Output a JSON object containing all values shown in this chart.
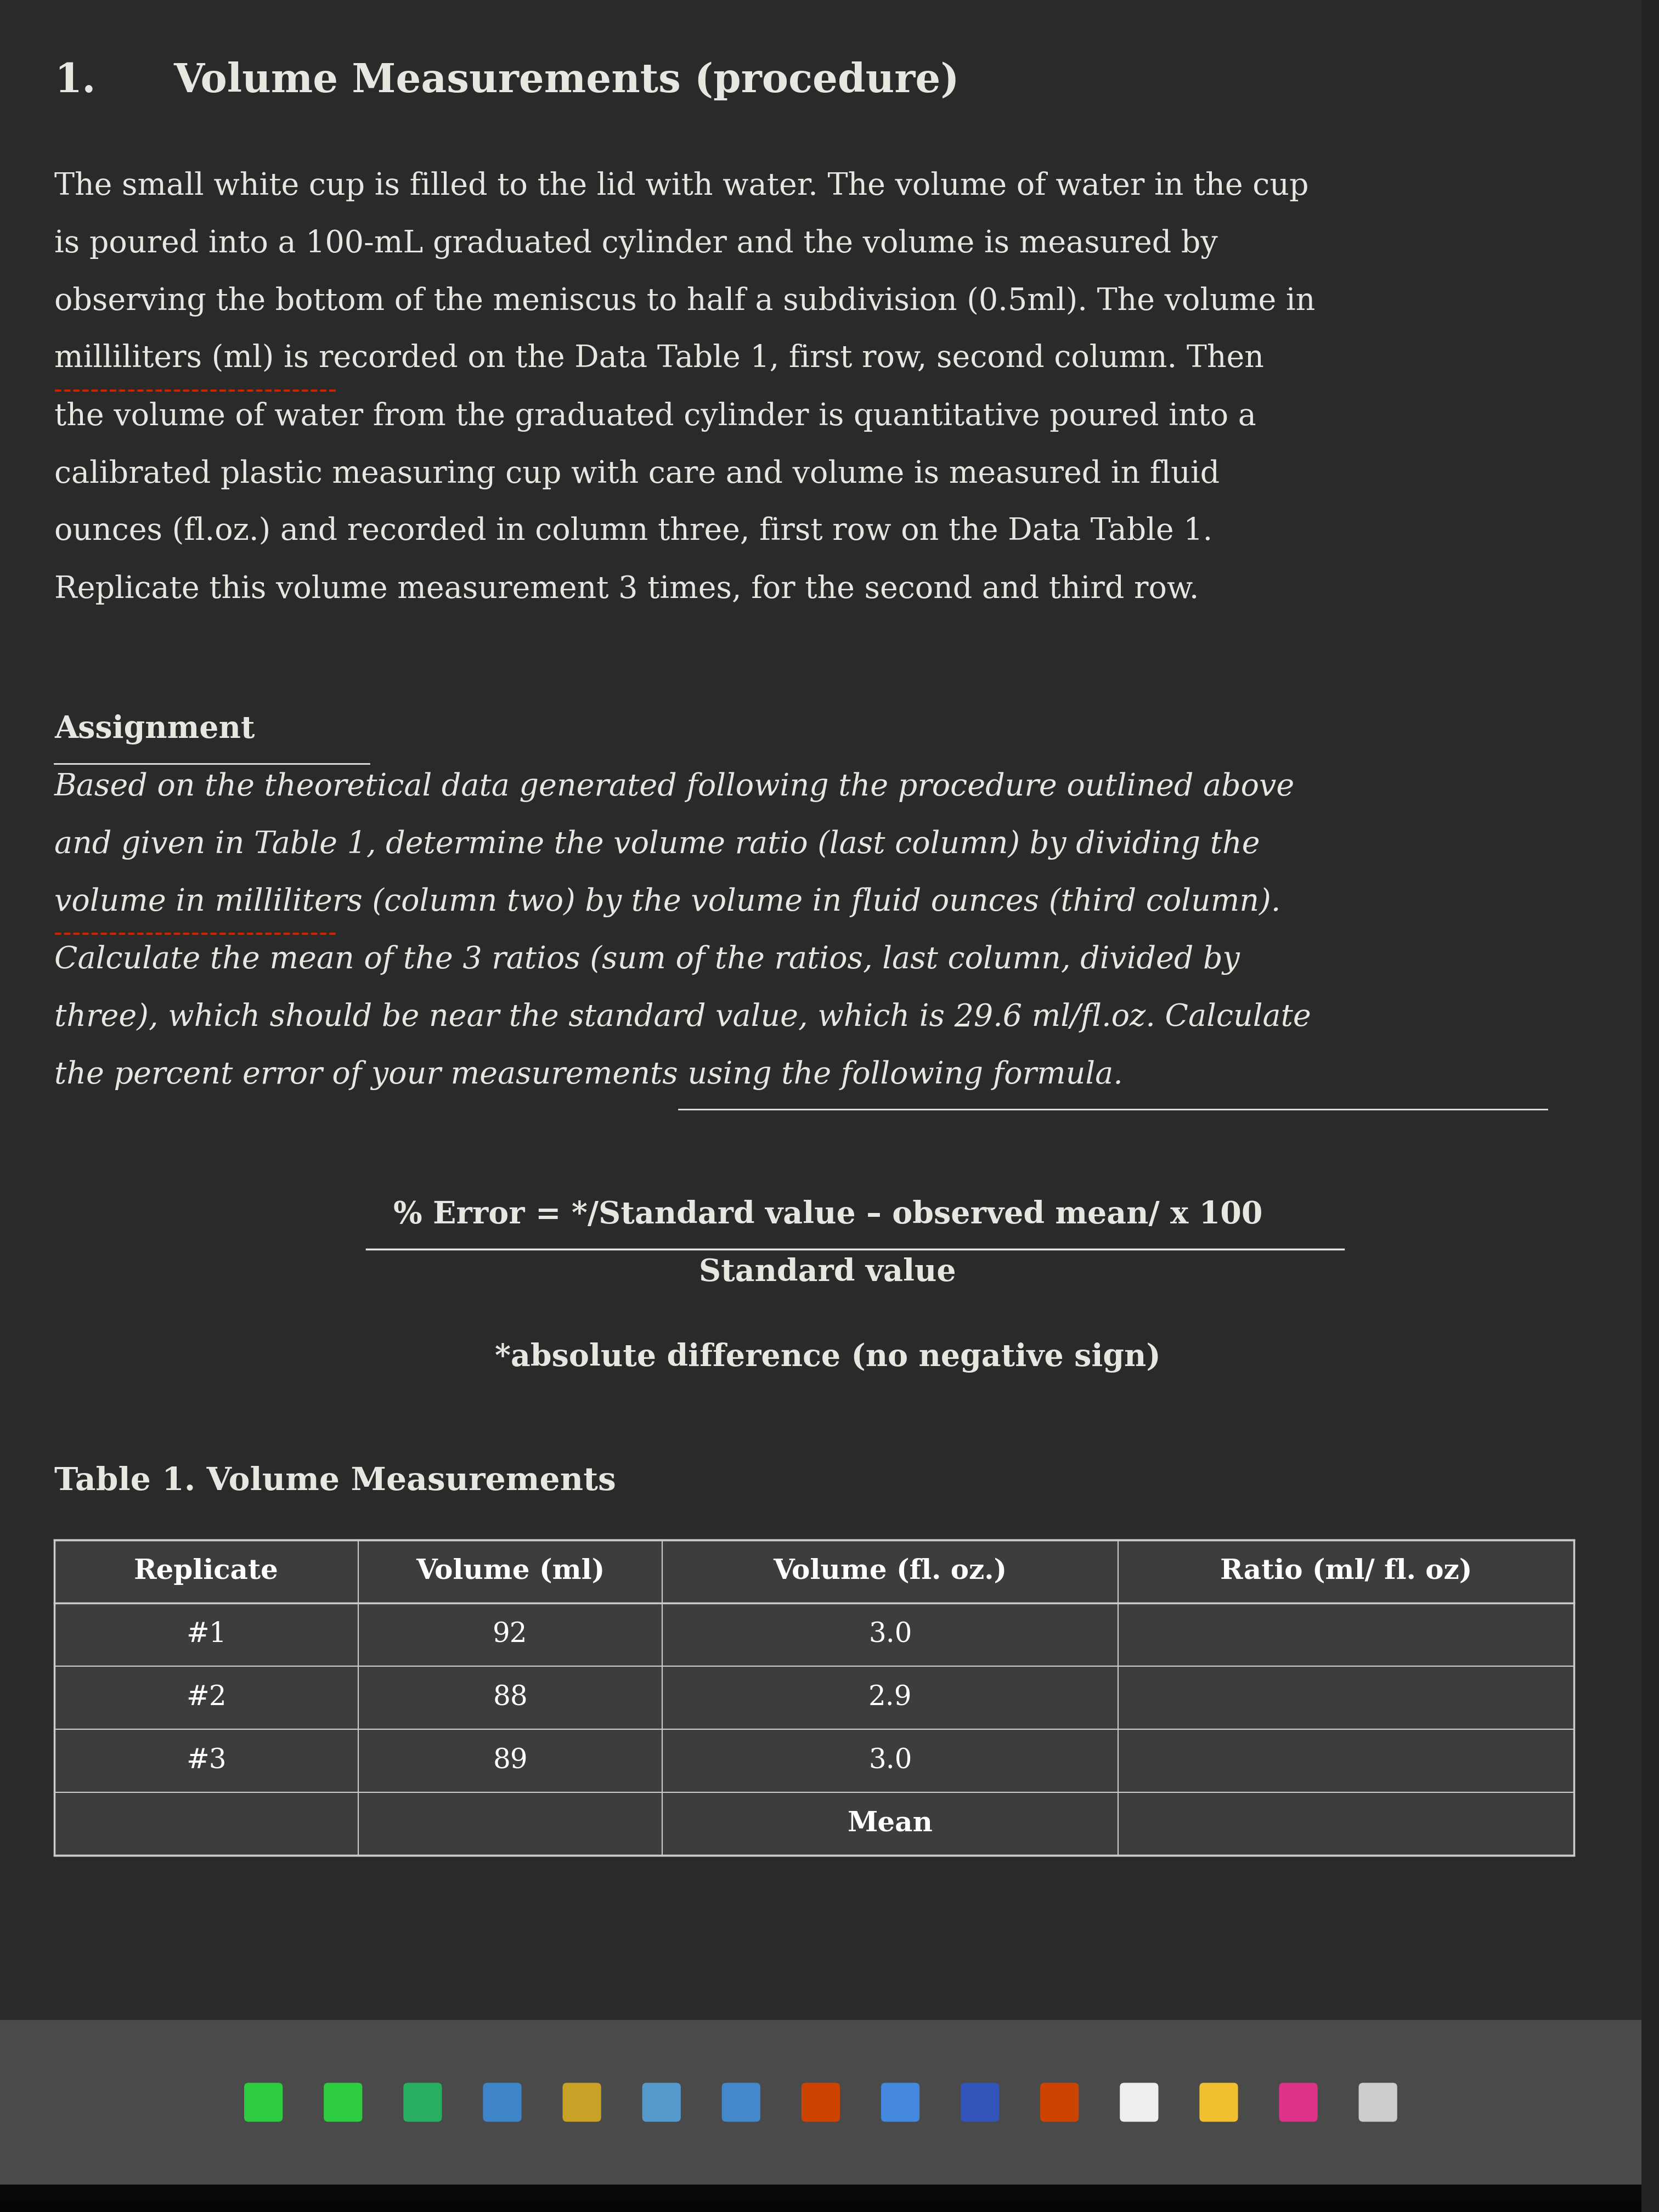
{
  "background_color": "#232323",
  "content_bg": "#2d2d2d",
  "text_color": "#e8e6e0",
  "title_number": "1.",
  "title_text": "Volume Measurements (procedure)",
  "paragraph1_lines": [
    "The small white cup is filled to the lid with water. The volume of water in the cup",
    "is poured into a 100-mL graduated cylinder and the volume is measured by",
    "observing the bottom of the meniscus to half a subdivision (0.5ml). The volume in",
    "milliliters (ml) is recorded on the Data Table 1, first row, second column. Then",
    "the volume of water from the graduated cylinder is quantitative poured into a",
    "calibrated plastic measuring cup with care and volume is measured in fluid",
    "ounces (fl.oz.) and recorded in column three, first row on the Data Table 1.",
    "Replicate this volume measurement 3 times, for the second and third row."
  ],
  "assignment_title": "Assignment",
  "assignment_body_lines": [
    "Based on the theoretical data generated following the procedure outlined above",
    "and given in Table 1, determine the volume ratio (last column) by dividing the",
    "volume in milliliters (column two) by the volume in fluid ounces (third column).",
    "Calculate the mean of the 3 ratios (sum of the ratios, last column, divided by",
    "three), which should be near the standard value, which is 29.6 ml/fl.oz. Calculate",
    "the percent error of your measurements using the following formula."
  ],
  "formula_numerator": "% Error = */Standard value – observed mean/ x 100",
  "formula_denominator": "Standard value",
  "formula_note": "*absolute difference (no negative sign)",
  "table_title": "Table 1. Volume Measurements",
  "table_headers": [
    "Replicate",
    "Volume (ml)",
    "Volume (fl. oz.)",
    "Ratio (ml/ fl. oz)"
  ],
  "table_rows": [
    [
      "#1",
      "92",
      "3.0",
      ""
    ],
    [
      "#2",
      "88",
      "2.9",
      ""
    ],
    [
      "#3",
      "89",
      "3.0",
      ""
    ],
    [
      "",
      "",
      "Mean",
      ""
    ]
  ],
  "dock_bg": "#5a5a5a",
  "bottom_black": "#0a0a0a",
  "table_fill": "#3a3a3a",
  "table_border": "#cccccc",
  "table_text": "#ffffff"
}
